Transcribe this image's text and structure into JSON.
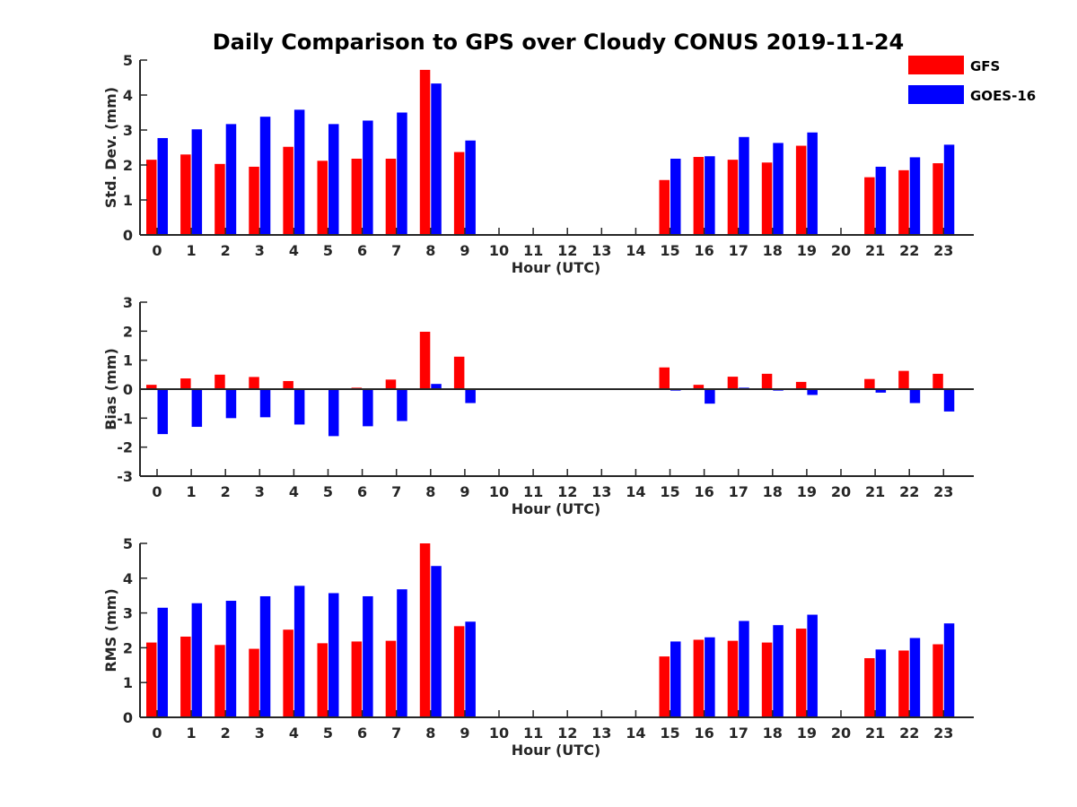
{
  "figure": {
    "title": "Daily Comparison to GPS over Cloudy CONUS 2019-11-24",
    "legend": [
      {
        "name": "GFS",
        "color": "#ff0000"
      },
      {
        "name": "GOES-16",
        "color": "#0000ff"
      }
    ],
    "legend_placement": "top-right"
  },
  "chart_data": [
    {
      "type": "bar",
      "ylabel": "Std. Dev. (mm)",
      "xlabel": "Hour (UTC)",
      "ylim": [
        0,
        5
      ],
      "yticks": [
        0,
        1,
        2,
        3,
        4,
        5
      ],
      "categories": [
        "0",
        "1",
        "2",
        "3",
        "4",
        "5",
        "6",
        "7",
        "8",
        "9",
        "10",
        "11",
        "12",
        "13",
        "14",
        "15",
        "16",
        "17",
        "18",
        "19",
        "20",
        "21",
        "22",
        "23"
      ],
      "series": [
        {
          "name": "GFS",
          "values": [
            2.15,
            2.3,
            2.03,
            1.95,
            2.52,
            2.12,
            2.18,
            2.18,
            4.72,
            2.37,
            null,
            null,
            null,
            null,
            null,
            1.57,
            2.23,
            2.15,
            2.07,
            2.55,
            null,
            1.65,
            1.85,
            2.05
          ]
        },
        {
          "name": "GOES-16",
          "values": [
            2.77,
            3.02,
            3.17,
            3.38,
            3.58,
            3.17,
            3.27,
            3.5,
            4.33,
            2.7,
            null,
            null,
            null,
            null,
            null,
            2.18,
            2.25,
            2.8,
            2.63,
            2.93,
            null,
            1.95,
            2.22,
            2.58
          ]
        }
      ]
    },
    {
      "type": "bar",
      "ylabel": "Bias (mm)",
      "xlabel": "Hour (UTC)",
      "ylim": [
        -3,
        3
      ],
      "yticks": [
        -3,
        -2,
        -1,
        0,
        1,
        2,
        3
      ],
      "categories": [
        "0",
        "1",
        "2",
        "3",
        "4",
        "5",
        "6",
        "7",
        "8",
        "9",
        "10",
        "11",
        "12",
        "13",
        "14",
        "15",
        "16",
        "17",
        "18",
        "19",
        "20",
        "21",
        "22",
        "23"
      ],
      "series": [
        {
          "name": "GFS",
          "values": [
            0.15,
            0.37,
            0.5,
            0.42,
            0.28,
            0.03,
            0.05,
            0.33,
            1.98,
            1.12,
            null,
            null,
            null,
            null,
            null,
            0.75,
            0.15,
            0.43,
            0.53,
            0.25,
            null,
            0.35,
            0.63,
            0.53
          ]
        },
        {
          "name": "GOES-16",
          "values": [
            -1.55,
            -1.3,
            -1.0,
            -0.97,
            -1.22,
            -1.62,
            -1.28,
            -1.1,
            0.18,
            -0.48,
            null,
            null,
            null,
            null,
            null,
            -0.05,
            -0.5,
            0.05,
            -0.05,
            -0.2,
            null,
            -0.12,
            -0.48,
            -0.77
          ]
        }
      ]
    },
    {
      "type": "bar",
      "ylabel": "RMS (mm)",
      "xlabel": "Hour (UTC)",
      "ylim": [
        0,
        5
      ],
      "yticks": [
        0,
        1,
        2,
        3,
        4,
        5
      ],
      "categories": [
        "0",
        "1",
        "2",
        "3",
        "4",
        "5",
        "6",
        "7",
        "8",
        "9",
        "10",
        "11",
        "12",
        "13",
        "14",
        "15",
        "16",
        "17",
        "18",
        "19",
        "20",
        "21",
        "22",
        "23"
      ],
      "series": [
        {
          "name": "GFS",
          "values": [
            2.15,
            2.32,
            2.08,
            1.97,
            2.52,
            2.13,
            2.18,
            2.2,
            5.0,
            2.62,
            null,
            null,
            null,
            null,
            null,
            1.75,
            2.23,
            2.2,
            2.15,
            2.55,
            null,
            1.7,
            1.92,
            2.1
          ]
        },
        {
          "name": "GOES-16",
          "values": [
            3.15,
            3.28,
            3.35,
            3.48,
            3.78,
            3.57,
            3.48,
            3.68,
            4.35,
            2.75,
            null,
            null,
            null,
            null,
            null,
            2.18,
            2.3,
            2.77,
            2.65,
            2.95,
            null,
            1.95,
            2.28,
            2.7
          ]
        }
      ]
    }
  ]
}
